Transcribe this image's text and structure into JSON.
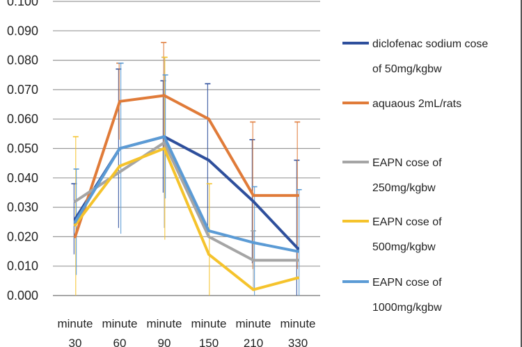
{
  "chart_data": {
    "type": "line",
    "categories": [
      [
        "minute",
        "30"
      ],
      [
        "minute",
        "60"
      ],
      [
        "minute",
        "90"
      ],
      [
        "minute",
        "150"
      ],
      [
        "minute",
        "210"
      ],
      [
        "minute",
        "330"
      ]
    ],
    "ylim": [
      0,
      0.1
    ],
    "y_ticks": [
      "0.000",
      "0.010",
      "0.020",
      "0.030",
      "0.040",
      "0.050",
      "0.060",
      "0.070",
      "0.080",
      "0.090",
      "0.100"
    ],
    "grid": "horizontal",
    "legend_position": "right",
    "series": [
      {
        "name": [
          "diclofenac sodium cose",
          "of 50mg/kgbw"
        ],
        "color": "#2e4f9c",
        "values": [
          0.026,
          0.05,
          0.054,
          0.046,
          0.032,
          0.016
        ],
        "errors": [
          0.012,
          0.027,
          0.019,
          0.026,
          0.021,
          0.03
        ]
      },
      {
        "name": [
          "aquaous 2mL/rats"
        ],
        "color": "#e07b39",
        "values": [
          0.02,
          0.066,
          0.068,
          0.06,
          0.034,
          0.034
        ],
        "errors": [
          0.0,
          0.013,
          0.018,
          0.0,
          0.025,
          0.025
        ]
      },
      {
        "name": [
          "EAPN cose of",
          "250mg/kgbw"
        ],
        "color": "#a5a5a5",
        "values": [
          0.032,
          0.042,
          0.052,
          0.02,
          0.012,
          0.012
        ],
        "errors": [
          0.0,
          0.0,
          0.029,
          0.0,
          0.01,
          0.0
        ]
      },
      {
        "name": [
          "EAPN cose of",
          "500mg/kgbw"
        ],
        "color": "#f5c32c",
        "values": [
          0.024,
          0.044,
          0.05,
          0.014,
          0.002,
          0.006
        ],
        "errors": [
          0.03,
          0.0,
          0.031,
          0.024,
          0.0,
          0.0
        ]
      },
      {
        "name": [
          "EAPN cose of",
          "1000mg/kgbw"
        ],
        "color": "#5b9bd5",
        "values": [
          0.025,
          0.05,
          0.054,
          0.022,
          0.018,
          0.015
        ],
        "errors": [
          0.018,
          0.029,
          0.021,
          0.0,
          0.019,
          0.021
        ]
      }
    ]
  }
}
